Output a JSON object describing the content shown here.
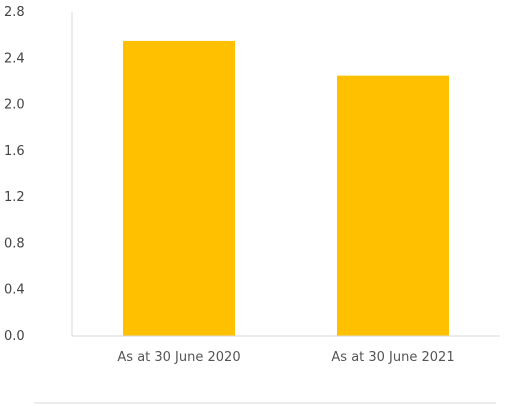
{
  "chart_data": {
    "type": "bar",
    "categories": [
      "As at 30 June 2020",
      "As at 30 June 2021"
    ],
    "values": [
      2.55,
      2.25
    ],
    "y_ticks": [
      "0.0",
      "0.4",
      "0.8",
      "1.2",
      "1.6",
      "2.0",
      "2.4",
      "2.8"
    ],
    "ylim": [
      0,
      2.8
    ],
    "bar_color": "#FFC000",
    "axis_color": "#D9D9D9",
    "grid": false,
    "legend": "none"
  }
}
